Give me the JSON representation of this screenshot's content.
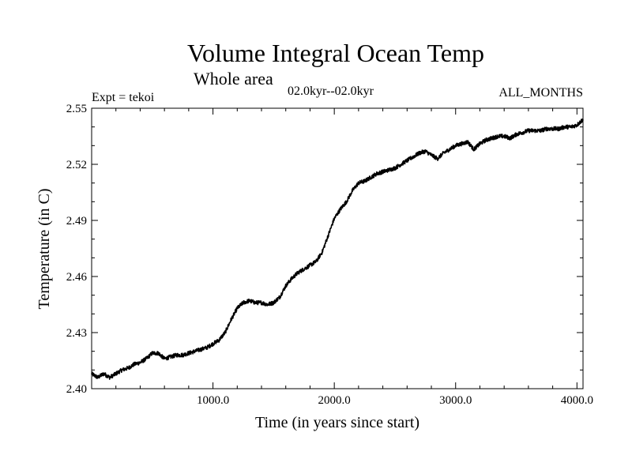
{
  "chart_data": {
    "type": "line",
    "title": "Volume Integral Ocean Temp",
    "subtitle": "Whole area",
    "time_range": "02.0kyr--02.0kyr",
    "expt": "Expt = tekoi",
    "months": "ALL_MONTHS",
    "xlabel": "Time (in years since start)",
    "ylabel": "Temperature (in C)",
    "xlim": [
      0,
      4050
    ],
    "ylim": [
      2.4,
      2.55
    ],
    "x_ticks": [
      1000,
      2000,
      3000,
      4000
    ],
    "x_tick_labels": [
      "1000.0",
      "2000.0",
      "3000.0",
      "4000.0"
    ],
    "y_ticks": [
      2.4,
      2.43,
      2.46,
      2.49,
      2.52,
      2.55
    ],
    "y_tick_labels": [
      "2.40",
      "2.43",
      "2.46",
      "2.49",
      "2.52",
      "2.55"
    ],
    "grid": false,
    "series": [
      {
        "name": "Volume integral ocean temperature",
        "x": [
          0,
          50,
          100,
          150,
          200,
          250,
          300,
          350,
          400,
          450,
          500,
          550,
          600,
          650,
          700,
          750,
          800,
          850,
          900,
          950,
          1000,
          1050,
          1100,
          1150,
          1200,
          1250,
          1300,
          1350,
          1400,
          1450,
          1500,
          1550,
          1600,
          1650,
          1700,
          1750,
          1800,
          1850,
          1900,
          1950,
          2000,
          2050,
          2100,
          2150,
          2200,
          2250,
          2300,
          2350,
          2400,
          2450,
          2500,
          2550,
          2600,
          2650,
          2700,
          2750,
          2800,
          2850,
          2900,
          2950,
          3000,
          3050,
          3100,
          3150,
          3200,
          3250,
          3300,
          3350,
          3400,
          3450,
          3500,
          3550,
          3600,
          3650,
          3700,
          3750,
          3800,
          3850,
          3900,
          3950,
          4000,
          4050
        ],
        "values": [
          2.408,
          2.406,
          2.408,
          2.406,
          2.408,
          2.41,
          2.411,
          2.413,
          2.414,
          2.416,
          2.419,
          2.419,
          2.416,
          2.417,
          2.418,
          2.418,
          2.419,
          2.42,
          2.421,
          2.422,
          2.424,
          2.426,
          2.43,
          2.437,
          2.443,
          2.446,
          2.447,
          2.446,
          2.446,
          2.445,
          2.446,
          2.449,
          2.455,
          2.459,
          2.462,
          2.464,
          2.466,
          2.468,
          2.473,
          2.482,
          2.491,
          2.496,
          2.5,
          2.506,
          2.51,
          2.511,
          2.513,
          2.515,
          2.516,
          2.517,
          2.518,
          2.52,
          2.522,
          2.524,
          2.526,
          2.527,
          2.525,
          2.523,
          2.526,
          2.528,
          2.53,
          2.531,
          2.532,
          2.528,
          2.531,
          2.533,
          2.534,
          2.535,
          2.535,
          2.534,
          2.536,
          2.537,
          2.538,
          2.538,
          2.538,
          2.539,
          2.539,
          2.539,
          2.54,
          2.54,
          2.541,
          2.544
        ]
      }
    ]
  }
}
